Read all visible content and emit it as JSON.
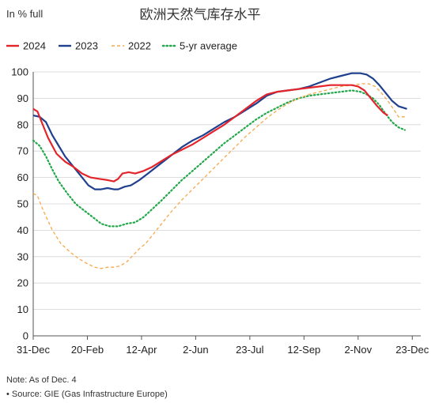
{
  "chart_data": {
    "type": "line",
    "unit_label": "In % full",
    "title": "欧洲天然气库存水平",
    "xlabel": "",
    "ylabel": "",
    "ylim": [
      0,
      100
    ],
    "y_ticks": [
      0,
      10,
      20,
      30,
      40,
      50,
      60,
      70,
      80,
      90,
      100
    ],
    "x_range_days": [
      0,
      365
    ],
    "x_ticks": [
      {
        "label": "31-Dec",
        "day": 0
      },
      {
        "label": "20-Feb",
        "day": 51
      },
      {
        "label": "12-Apr",
        "day": 102
      },
      {
        "label": "2-Jun",
        "day": 153
      },
      {
        "label": "23-Jul",
        "day": 204
      },
      {
        "label": "12-Sep",
        "day": 255
      },
      {
        "label": "2-Nov",
        "day": 306
      },
      {
        "label": "23-Dec",
        "day": 357
      }
    ],
    "grid": true,
    "legend_position": "top",
    "series": [
      {
        "name": "2024",
        "color": "#e3242b",
        "style": "solid",
        "points": [
          [
            0,
            86
          ],
          [
            4,
            85
          ],
          [
            8,
            81
          ],
          [
            14,
            75
          ],
          [
            22,
            69
          ],
          [
            30,
            66
          ],
          [
            38,
            64
          ],
          [
            46,
            61.5
          ],
          [
            54,
            60
          ],
          [
            62,
            59.5
          ],
          [
            70,
            59
          ],
          [
            76,
            58.5
          ],
          [
            80,
            59.5
          ],
          [
            84,
            61.5
          ],
          [
            90,
            62
          ],
          [
            96,
            61.5
          ],
          [
            104,
            62.5
          ],
          [
            112,
            64
          ],
          [
            120,
            66
          ],
          [
            130,
            68.5
          ],
          [
            140,
            70.5
          ],
          [
            150,
            72.5
          ],
          [
            160,
            75
          ],
          [
            170,
            77.5
          ],
          [
            180,
            80
          ],
          [
            190,
            83
          ],
          [
            200,
            86
          ],
          [
            210,
            89
          ],
          [
            220,
            91.5
          ],
          [
            230,
            92.5
          ],
          [
            240,
            93
          ],
          [
            250,
            93.5
          ],
          [
            260,
            94
          ],
          [
            270,
            94.5
          ],
          [
            280,
            95
          ],
          [
            290,
            95
          ],
          [
            300,
            95
          ],
          [
            306,
            94.5
          ],
          [
            312,
            93
          ],
          [
            318,
            90
          ],
          [
            324,
            87
          ],
          [
            330,
            84.5
          ],
          [
            334,
            83.5
          ]
        ]
      },
      {
        "name": "2023",
        "color": "#1f3f8f",
        "style": "solid",
        "points": [
          [
            0,
            83.5
          ],
          [
            6,
            83
          ],
          [
            12,
            81
          ],
          [
            18,
            76
          ],
          [
            24,
            72
          ],
          [
            30,
            68
          ],
          [
            38,
            64
          ],
          [
            46,
            60
          ],
          [
            52,
            57
          ],
          [
            58,
            55.5
          ],
          [
            64,
            55.5
          ],
          [
            70,
            56
          ],
          [
            76,
            55.5
          ],
          [
            80,
            55.5
          ],
          [
            86,
            56.5
          ],
          [
            92,
            57
          ],
          [
            100,
            59
          ],
          [
            108,
            61.5
          ],
          [
            116,
            64
          ],
          [
            124,
            66.5
          ],
          [
            132,
            69
          ],
          [
            140,
            71.5
          ],
          [
            150,
            74
          ],
          [
            160,
            76
          ],
          [
            170,
            78.5
          ],
          [
            180,
            81
          ],
          [
            190,
            83
          ],
          [
            200,
            85.5
          ],
          [
            210,
            88
          ],
          [
            220,
            91
          ],
          [
            230,
            92.5
          ],
          [
            240,
            93
          ],
          [
            250,
            93.5
          ],
          [
            260,
            94.5
          ],
          [
            270,
            96
          ],
          [
            280,
            97.5
          ],
          [
            290,
            98.5
          ],
          [
            300,
            99.5
          ],
          [
            308,
            99.5
          ],
          [
            314,
            99
          ],
          [
            320,
            97.5
          ],
          [
            326,
            95
          ],
          [
            332,
            92
          ],
          [
            338,
            89
          ],
          [
            344,
            87
          ],
          [
            352,
            86
          ]
        ]
      },
      {
        "name": "2022",
        "color": "#f7a84a",
        "style": "dashed",
        "points": [
          [
            0,
            54
          ],
          [
            4,
            53
          ],
          [
            10,
            47
          ],
          [
            18,
            40
          ],
          [
            26,
            35
          ],
          [
            34,
            32
          ],
          [
            42,
            29.5
          ],
          [
            50,
            27.5
          ],
          [
            58,
            26
          ],
          [
            64,
            25.5
          ],
          [
            70,
            26
          ],
          [
            76,
            26
          ],
          [
            82,
            26.5
          ],
          [
            88,
            28
          ],
          [
            94,
            30.5
          ],
          [
            100,
            33
          ],
          [
            106,
            35
          ],
          [
            112,
            38
          ],
          [
            120,
            42
          ],
          [
            130,
            47
          ],
          [
            140,
            51.5
          ],
          [
            150,
            55.5
          ],
          [
            160,
            59.5
          ],
          [
            170,
            63.5
          ],
          [
            180,
            67.5
          ],
          [
            190,
            71.5
          ],
          [
            200,
            75.5
          ],
          [
            210,
            79
          ],
          [
            220,
            82.5
          ],
          [
            230,
            85.5
          ],
          [
            240,
            88
          ],
          [
            250,
            90
          ],
          [
            260,
            91.5
          ],
          [
            270,
            92.5
          ],
          [
            280,
            93.5
          ],
          [
            290,
            94.5
          ],
          [
            300,
            95
          ],
          [
            310,
            95.5
          ],
          [
            316,
            95.5
          ],
          [
            322,
            94.5
          ],
          [
            328,
            92
          ],
          [
            334,
            89
          ],
          [
            340,
            85.5
          ],
          [
            344,
            83
          ],
          [
            350,
            83
          ]
        ]
      },
      {
        "name": "5-yr average",
        "color": "#22a84a",
        "style": "dotted",
        "points": [
          [
            0,
            74
          ],
          [
            6,
            72
          ],
          [
            12,
            68
          ],
          [
            18,
            63
          ],
          [
            24,
            58.5
          ],
          [
            32,
            54
          ],
          [
            40,
            50
          ],
          [
            48,
            47.5
          ],
          [
            56,
            45
          ],
          [
            64,
            42.5
          ],
          [
            72,
            41.5
          ],
          [
            80,
            41.5
          ],
          [
            88,
            42.5
          ],
          [
            96,
            43
          ],
          [
            104,
            45
          ],
          [
            112,
            48
          ],
          [
            120,
            51
          ],
          [
            130,
            55
          ],
          [
            140,
            59
          ],
          [
            150,
            62.5
          ],
          [
            160,
            66
          ],
          [
            170,
            69.5
          ],
          [
            180,
            73
          ],
          [
            190,
            76
          ],
          [
            200,
            79
          ],
          [
            210,
            82
          ],
          [
            220,
            84.5
          ],
          [
            230,
            86.5
          ],
          [
            240,
            88.5
          ],
          [
            250,
            90
          ],
          [
            260,
            91
          ],
          [
            270,
            91.5
          ],
          [
            280,
            92
          ],
          [
            290,
            92.5
          ],
          [
            300,
            93
          ],
          [
            308,
            92.5
          ],
          [
            314,
            91.5
          ],
          [
            320,
            90
          ],
          [
            326,
            87.5
          ],
          [
            332,
            84
          ],
          [
            338,
            81
          ],
          [
            344,
            79
          ],
          [
            350,
            78
          ]
        ]
      }
    ]
  },
  "notes": {
    "note_line": "Note: As of Dec. 4",
    "source_line": "• Source: GIE (Gas Infrastructure Europe)"
  }
}
